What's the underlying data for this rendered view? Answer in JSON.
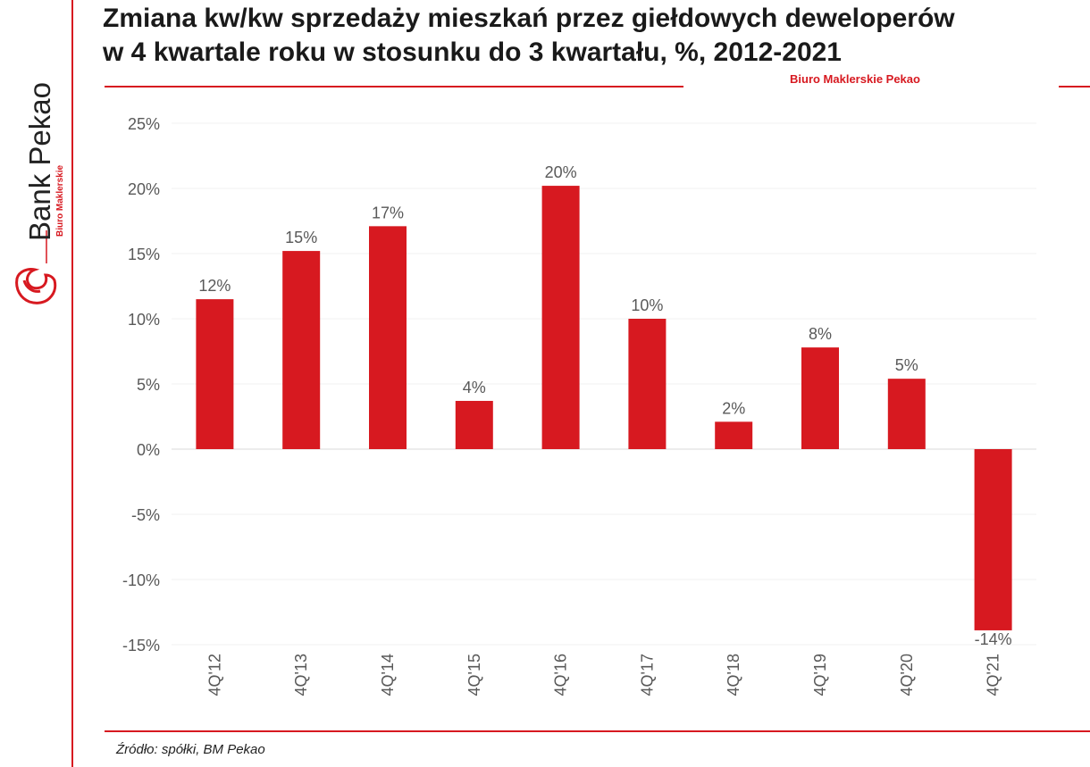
{
  "header": {
    "title_line1": "Zmiana kw/kw sprzedaży mieszkań przez giełdowych deweloperów",
    "title_line2": "w 4 kwartale roku w stosunku do 3 kwartału, %, 2012-2021",
    "brand_sub": "Biuro Maklerskie Pekao"
  },
  "sidebar": {
    "brand": "Bank Pekao",
    "brand_sub": "Biuro Maklerskie"
  },
  "footer": {
    "source": "Źródło: spółki, BM Pekao"
  },
  "colors": {
    "bar": "#d71920",
    "accent": "#d71920",
    "grid": "#f0f0f0",
    "axis": "#d9d9d9",
    "text": "#595959"
  },
  "chart_data": {
    "type": "bar",
    "categories": [
      "4Q'12",
      "4Q'13",
      "4Q'14",
      "4Q'15",
      "4Q'16",
      "4Q'17",
      "4Q'18",
      "4Q'19",
      "4Q'20",
      "4Q'21"
    ],
    "values": [
      11.5,
      15.2,
      17.1,
      3.7,
      20.2,
      10.0,
      2.1,
      7.8,
      5.4,
      -13.9
    ],
    "data_labels": [
      "12%",
      "15%",
      "17%",
      "4%",
      "20%",
      "10%",
      "2%",
      "8%",
      "5%",
      "-14%"
    ],
    "ylim": [
      -15,
      25
    ],
    "yticks": [
      25,
      20,
      15,
      10,
      5,
      0,
      -5,
      -10,
      -15
    ],
    "ytick_labels": [
      "25%",
      "20%",
      "15%",
      "10%",
      "5%",
      "0%",
      "-5%",
      "-10%",
      "-15%"
    ],
    "grid": true,
    "legend": "none"
  }
}
